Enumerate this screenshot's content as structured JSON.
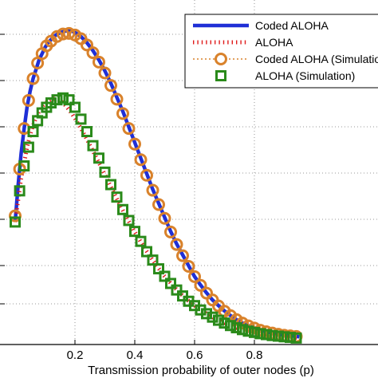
{
  "chart_data": {
    "type": "line",
    "title": "",
    "xlabel": "Transmission probability of outer nodes (p)",
    "ylabel": "",
    "xlim": [
      0,
      0.95
    ],
    "ylim": [
      0,
      1.0
    ],
    "x_ticks": [
      0.2,
      0.4,
      0.6,
      0.8
    ],
    "x_tick_labels": [
      "0.2",
      "0.4",
      "0.6",
      "0.8"
    ],
    "grid": "on",
    "legend_position": "top-right",
    "series": [
      {
        "name": "Coded ALOHA",
        "style": "solid-line",
        "color": "#1f2fd6",
        "x": [
          0.0,
          0.01,
          0.02,
          0.03,
          0.04,
          0.05,
          0.06,
          0.07,
          0.08,
          0.09,
          0.1,
          0.11,
          0.12,
          0.13,
          0.14,
          0.15,
          0.16,
          0.17,
          0.18,
          0.19,
          0.2,
          0.22,
          0.24,
          0.26,
          0.28,
          0.3,
          0.32,
          0.34,
          0.36,
          0.38,
          0.4,
          0.42,
          0.44,
          0.46,
          0.48,
          0.5,
          0.52,
          0.54,
          0.56,
          0.58,
          0.6,
          0.62,
          0.64,
          0.66,
          0.68,
          0.7,
          0.72,
          0.74,
          0.76,
          0.78,
          0.8,
          0.82,
          0.84,
          0.86,
          0.88,
          0.9,
          0.92,
          0.95
        ],
        "y": [
          0.38,
          0.5,
          0.6,
          0.68,
          0.75,
          0.8,
          0.84,
          0.87,
          0.9,
          0.92,
          0.94,
          0.955,
          0.965,
          0.975,
          0.982,
          0.987,
          0.99,
          0.993,
          0.994,
          0.992,
          0.988,
          0.975,
          0.955,
          0.93,
          0.9,
          0.865,
          0.825,
          0.78,
          0.735,
          0.685,
          0.635,
          0.585,
          0.535,
          0.485,
          0.44,
          0.395,
          0.35,
          0.31,
          0.275,
          0.24,
          0.205,
          0.178,
          0.153,
          0.13,
          0.112,
          0.095,
          0.08,
          0.067,
          0.056,
          0.047,
          0.04,
          0.033,
          0.028,
          0.024,
          0.02,
          0.017,
          0.015,
          0.012
        ]
      },
      {
        "name": "ALOHA",
        "style": "dotted-line",
        "color": "#e01b1b",
        "x": [
          0.0,
          0.01,
          0.02,
          0.03,
          0.04,
          0.05,
          0.06,
          0.07,
          0.08,
          0.09,
          0.1,
          0.11,
          0.12,
          0.13,
          0.14,
          0.15,
          0.16,
          0.17,
          0.18,
          0.19,
          0.2,
          0.22,
          0.24,
          0.26,
          0.28,
          0.3,
          0.32,
          0.34,
          0.36,
          0.38,
          0.4,
          0.42,
          0.44,
          0.46,
          0.48,
          0.5,
          0.52,
          0.54,
          0.56,
          0.58,
          0.6,
          0.62,
          0.64,
          0.66,
          0.68,
          0.7,
          0.72,
          0.74,
          0.76,
          0.78,
          0.8,
          0.82,
          0.84,
          0.86,
          0.88,
          0.9,
          0.92,
          0.95
        ],
        "y": [
          0.38,
          0.45,
          0.52,
          0.57,
          0.62,
          0.66,
          0.69,
          0.715,
          0.735,
          0.75,
          0.76,
          0.768,
          0.773,
          0.775,
          0.774,
          0.77,
          0.762,
          0.752,
          0.74,
          0.727,
          0.712,
          0.68,
          0.645,
          0.608,
          0.57,
          0.532,
          0.493,
          0.455,
          0.418,
          0.382,
          0.348,
          0.316,
          0.286,
          0.258,
          0.231,
          0.206,
          0.184,
          0.163,
          0.144,
          0.127,
          0.112,
          0.098,
          0.086,
          0.075,
          0.065,
          0.056,
          0.048,
          0.041,
          0.035,
          0.03,
          0.026,
          0.022,
          0.019,
          0.016,
          0.014,
          0.012,
          0.01,
          0.008
        ]
      },
      {
        "name": "Coded ALOHA (Simulation)",
        "style": "circle-markers",
        "color": "#d9822b",
        "x": [
          0.0,
          0.015,
          0.03,
          0.045,
          0.06,
          0.075,
          0.09,
          0.105,
          0.12,
          0.14,
          0.16,
          0.18,
          0.2,
          0.22,
          0.24,
          0.26,
          0.28,
          0.3,
          0.32,
          0.34,
          0.36,
          0.38,
          0.4,
          0.42,
          0.44,
          0.46,
          0.48,
          0.5,
          0.52,
          0.54,
          0.56,
          0.58,
          0.6,
          0.62,
          0.64,
          0.66,
          0.68,
          0.7,
          0.72,
          0.74,
          0.76,
          0.78,
          0.8,
          0.82,
          0.84,
          0.86,
          0.88,
          0.9,
          0.92,
          0.94
        ],
        "y": [
          0.4,
          0.55,
          0.68,
          0.77,
          0.84,
          0.89,
          0.92,
          0.945,
          0.96,
          0.975,
          0.983,
          0.985,
          0.98,
          0.968,
          0.948,
          0.923,
          0.893,
          0.858,
          0.818,
          0.774,
          0.728,
          0.68,
          0.63,
          0.58,
          0.53,
          0.482,
          0.436,
          0.392,
          0.348,
          0.308,
          0.272,
          0.238,
          0.205,
          0.177,
          0.152,
          0.13,
          0.111,
          0.094,
          0.08,
          0.067,
          0.056,
          0.047,
          0.04,
          0.033,
          0.028,
          0.024,
          0.02,
          0.017,
          0.015,
          0.013
        ]
      },
      {
        "name": "ALOHA (Simulation)",
        "style": "square-markers",
        "color": "#2a8a1a",
        "x": [
          0.0,
          0.015,
          0.03,
          0.045,
          0.06,
          0.075,
          0.09,
          0.105,
          0.12,
          0.14,
          0.16,
          0.18,
          0.2,
          0.22,
          0.24,
          0.26,
          0.28,
          0.3,
          0.32,
          0.34,
          0.36,
          0.38,
          0.4,
          0.42,
          0.44,
          0.46,
          0.48,
          0.5,
          0.52,
          0.54,
          0.56,
          0.58,
          0.6,
          0.62,
          0.64,
          0.66,
          0.68,
          0.7,
          0.72,
          0.74,
          0.76,
          0.78,
          0.8,
          0.82,
          0.84,
          0.86,
          0.88,
          0.9,
          0.92,
          0.94
        ],
        "y": [
          0.38,
          0.48,
          0.56,
          0.62,
          0.67,
          0.705,
          0.73,
          0.748,
          0.762,
          0.772,
          0.778,
          0.772,
          0.748,
          0.71,
          0.67,
          0.625,
          0.585,
          0.54,
          0.5,
          0.46,
          0.42,
          0.385,
          0.35,
          0.318,
          0.285,
          0.258,
          0.23,
          0.206,
          0.183,
          0.162,
          0.143,
          0.126,
          0.112,
          0.098,
          0.086,
          0.075,
          0.065,
          0.056,
          0.048,
          0.041,
          0.035,
          0.03,
          0.026,
          0.022,
          0.019,
          0.016,
          0.014,
          0.012,
          0.01,
          0.008
        ]
      }
    ]
  }
}
